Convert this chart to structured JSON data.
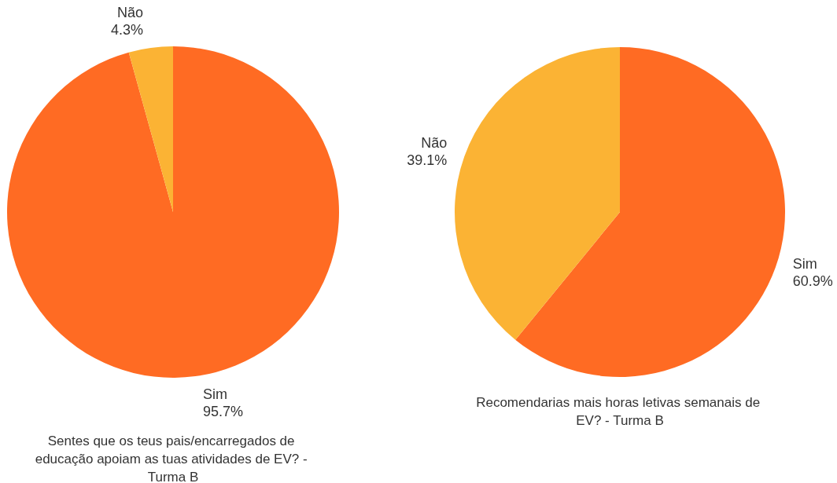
{
  "chart_data": [
    {
      "type": "pie",
      "title": "Sentes que os teus pais/encarregados de educação apoiam as tuas atividades de EV? - Turma B",
      "categories": [
        "Sim",
        "Não"
      ],
      "values": [
        95.7,
        4.3
      ],
      "colors": [
        "#ff6b23",
        "#fbb334"
      ],
      "value_labels": [
        "95.7%",
        "4.3%"
      ]
    },
    {
      "type": "pie",
      "title": "Recomendarias mais horas letivas semanais de EV? - Turma B",
      "categories": [
        "Sim",
        "Não"
      ],
      "values": [
        60.9,
        39.1
      ],
      "colors": [
        "#ff6b23",
        "#fbb334"
      ],
      "value_labels": [
        "60.9%",
        "39.1%"
      ]
    }
  ]
}
